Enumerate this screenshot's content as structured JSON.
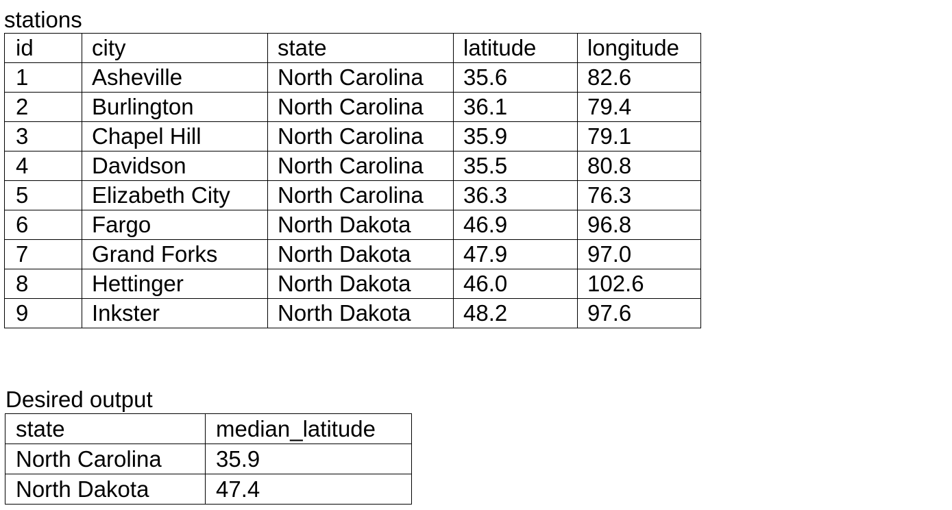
{
  "stations": {
    "caption": "stations",
    "columns": [
      "id",
      "city",
      "state",
      "latitude",
      "longitude"
    ],
    "rows": [
      [
        "1",
        "Asheville",
        "North Carolina",
        "35.6",
        "82.6"
      ],
      [
        "2",
        "Burlington",
        "North Carolina",
        "36.1",
        "79.4"
      ],
      [
        "3",
        "Chapel Hill",
        "North Carolina",
        "35.9",
        "79.1"
      ],
      [
        "4",
        "Davidson",
        "North Carolina",
        "35.5",
        "80.8"
      ],
      [
        "5",
        "Elizabeth City",
        "North Carolina",
        "36.3",
        "76.3"
      ],
      [
        "6",
        "Fargo",
        "North Dakota",
        "46.9",
        "96.8"
      ],
      [
        "7",
        "Grand Forks",
        "North Dakota",
        "47.9",
        "97.0"
      ],
      [
        "8",
        "Hettinger",
        "North Dakota",
        "46.0",
        "102.6"
      ],
      [
        "9",
        "Inkster",
        "North Dakota",
        "48.2",
        "97.6"
      ]
    ]
  },
  "desired_output": {
    "caption": "Desired output",
    "columns": [
      "state",
      "median_latitude"
    ],
    "rows": [
      [
        "North Carolina",
        "35.9"
      ],
      [
        "North Dakota",
        "47.4"
      ]
    ]
  }
}
